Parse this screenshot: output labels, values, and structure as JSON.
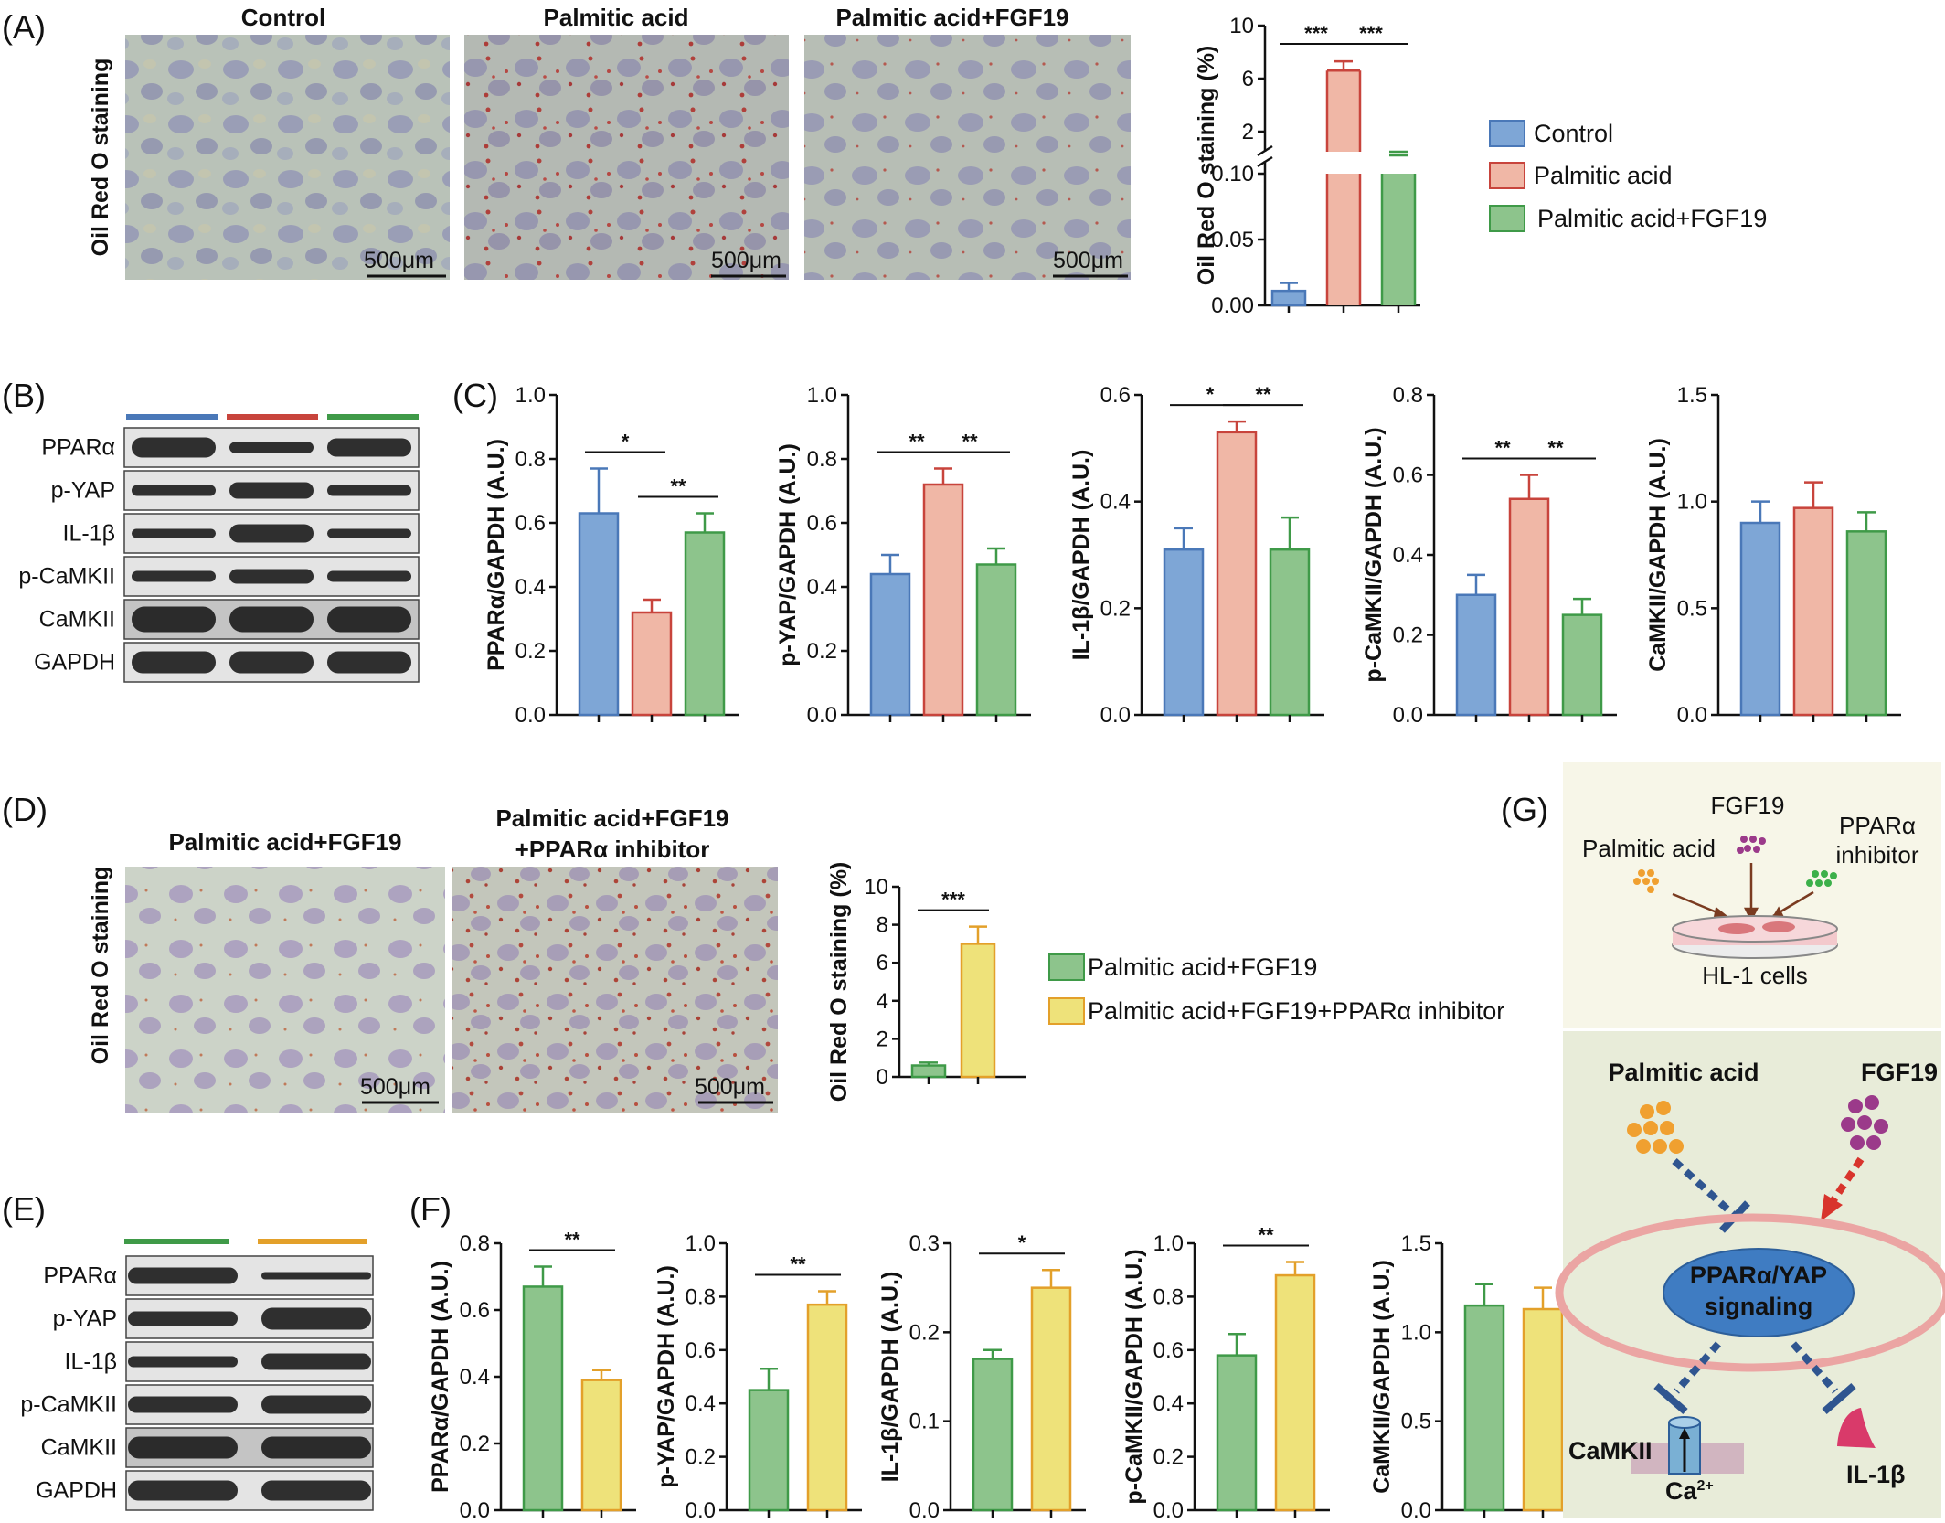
{
  "colors": {
    "control": "#7ea6d6",
    "control_edge": "#4a78b8",
    "pa": "#f0b7a6",
    "pa_edge": "#c8443c",
    "pafgf": "#8dc48c",
    "pafgf_edge": "#3f9a48",
    "inh": "#eee27a",
    "inh_edge": "#e3a02a"
  },
  "panels": {
    "A": "(A)",
    "B": "(B)",
    "C": "(C)",
    "D": "(D)",
    "E": "(E)",
    "F": "(F)",
    "G": "(G)"
  },
  "panel_a": {
    "titles": [
      "Control",
      "Palmitic acid",
      "Palmitic acid+FGF19"
    ],
    "ylabel": "Oil Red O staining",
    "scalebar": "500μm"
  },
  "panel_d": {
    "titles": [
      "Palmitic acid+FGF19",
      "Palmitic acid+FGF19",
      "+PPARα inhibitor"
    ],
    "ylabel": "Oil Red O staining",
    "scalebar": "500μm"
  },
  "legend_abc": [
    "Control",
    "Palmitic acid",
    "Palmitic acid+FGF19"
  ],
  "legend_def": [
    "Palmitic acid+FGF19",
    "Palmitic acid+FGF19+PPARα inhibitor"
  ],
  "blots_b": [
    "PPARα",
    "p-YAP",
    "IL-1β",
    "p-CaMKII",
    "CaMKII",
    "GAPDH"
  ],
  "blots_e": [
    "PPARα",
    "p-YAP",
    "IL-1β",
    "p-CaMKII",
    "CaMKII",
    "GAPDH"
  ],
  "chart_data": [
    {
      "id": "A",
      "type": "bar",
      "ylabel": "Oil Red O staining (%)",
      "broken_axis": true,
      "lower_ticks": [
        "0.00",
        "0.05",
        "0.10"
      ],
      "upper_ticks": [
        "2",
        "6",
        "10"
      ],
      "groups": [
        "Control",
        "Palmitic acid",
        "Palmitic acid+FGF19"
      ],
      "values": [
        0.011,
        6.6,
        0.13
      ],
      "errors": [
        0.006,
        0.7,
        0.02
      ],
      "sig": [
        {
          "from": 0,
          "to": 1,
          "label": "***"
        },
        {
          "from": 1,
          "to": 2,
          "label": "***"
        }
      ]
    },
    {
      "id": "C1",
      "type": "bar",
      "ylabel": "PPARα/GAPDH (A.U.)",
      "ylim": [
        0,
        1.0
      ],
      "ticks": [
        "0.0",
        "0.2",
        "0.4",
        "0.6",
        "0.8",
        "1.0"
      ],
      "groups": [
        "Control",
        "Palmitic acid",
        "Palmitic acid+FGF19"
      ],
      "values": [
        0.63,
        0.32,
        0.57
      ],
      "errors": [
        0.14,
        0.04,
        0.06
      ],
      "sig": [
        {
          "from": 0,
          "to": 1,
          "label": "*"
        },
        {
          "from": 1,
          "to": 2,
          "label": "**"
        }
      ]
    },
    {
      "id": "C2",
      "type": "bar",
      "ylabel": "p-YAP/GAPDH (A.U.)",
      "ylim": [
        0,
        1.0
      ],
      "ticks": [
        "0.0",
        "0.2",
        "0.4",
        "0.6",
        "0.8",
        "1.0"
      ],
      "groups": [
        "Control",
        "Palmitic acid",
        "Palmitic acid+FGF19"
      ],
      "values": [
        0.44,
        0.72,
        0.47
      ],
      "errors": [
        0.06,
        0.05,
        0.05
      ],
      "sig": [
        {
          "from": 0,
          "to": 1,
          "label": "**"
        },
        {
          "from": 1,
          "to": 2,
          "label": "**"
        }
      ]
    },
    {
      "id": "C3",
      "type": "bar",
      "ylabel": "IL-1β/GAPDH (A.U.)",
      "ylim": [
        0,
        0.6
      ],
      "ticks": [
        "0.0",
        "0.2",
        "0.4",
        "0.6"
      ],
      "groups": [
        "Control",
        "Palmitic acid",
        "Palmitic acid+FGF19"
      ],
      "values": [
        0.31,
        0.53,
        0.31
      ],
      "errors": [
        0.04,
        0.02,
        0.06
      ],
      "sig": [
        {
          "from": 0,
          "to": 1,
          "label": "*"
        },
        {
          "from": 1,
          "to": 2,
          "label": "**"
        }
      ]
    },
    {
      "id": "C4",
      "type": "bar",
      "ylabel": "p-CaMKII/GAPDH (A.U.)",
      "ylim": [
        0,
        0.8
      ],
      "ticks": [
        "0.0",
        "0.2",
        "0.4",
        "0.6",
        "0.8"
      ],
      "groups": [
        "Control",
        "Palmitic acid",
        "Palmitic acid+FGF19"
      ],
      "values": [
        0.3,
        0.54,
        0.25
      ],
      "errors": [
        0.05,
        0.06,
        0.04
      ],
      "sig": [
        {
          "from": 0,
          "to": 1,
          "label": "**"
        },
        {
          "from": 1,
          "to": 2,
          "label": "**"
        }
      ]
    },
    {
      "id": "C5",
      "type": "bar",
      "ylabel": "CaMKII/GAPDH (A.U.)",
      "ylim": [
        0,
        1.5
      ],
      "ticks": [
        "0.0",
        "0.5",
        "1.0",
        "1.5"
      ],
      "groups": [
        "Control",
        "Palmitic acid",
        "Palmitic acid+FGF19"
      ],
      "values": [
        0.9,
        0.97,
        0.86
      ],
      "errors": [
        0.1,
        0.12,
        0.09
      ],
      "sig": []
    },
    {
      "id": "D",
      "type": "bar",
      "ylabel": "Oil Red O staining (%)",
      "ylim": [
        0,
        10
      ],
      "ticks": [
        "0",
        "2",
        "4",
        "6",
        "8",
        "10"
      ],
      "groups": [
        "Palmitic acid+FGF19",
        "Palmitic acid+FGF19+PPARα inhibitor"
      ],
      "values": [
        0.6,
        7.0
      ],
      "errors": [
        0.15,
        0.9
      ],
      "sig": [
        {
          "from": 0,
          "to": 1,
          "label": "***"
        }
      ]
    },
    {
      "id": "F1",
      "type": "bar",
      "ylabel": "PPARα/GAPDH (A.U.)",
      "ylim": [
        0,
        0.8
      ],
      "ticks": [
        "0.0",
        "0.2",
        "0.4",
        "0.6",
        "0.8"
      ],
      "groups": [
        "Palmitic acid+FGF19",
        "Palmitic acid+FGF19+PPARα inhibitor"
      ],
      "values": [
        0.67,
        0.39
      ],
      "errors": [
        0.06,
        0.03
      ],
      "sig": [
        {
          "from": 0,
          "to": 1,
          "label": "**"
        }
      ]
    },
    {
      "id": "F2",
      "type": "bar",
      "ylabel": "p-YAP/GAPDH (A.U.)",
      "ylim": [
        0,
        1.0
      ],
      "ticks": [
        "0.0",
        "0.2",
        "0.4",
        "0.6",
        "0.8",
        "1.0"
      ],
      "groups": [
        "Palmitic acid+FGF19",
        "Palmitic acid+FGF19+PPARα inhibitor"
      ],
      "values": [
        0.45,
        0.77
      ],
      "errors": [
        0.08,
        0.05
      ],
      "sig": [
        {
          "from": 0,
          "to": 1,
          "label": "**"
        }
      ]
    },
    {
      "id": "F3",
      "type": "bar",
      "ylabel": "IL-1β/GAPDH (A.U.)",
      "ylim": [
        0,
        0.3
      ],
      "ticks": [
        "0.0",
        "0.1",
        "0.2",
        "0.3"
      ],
      "groups": [
        "Palmitic acid+FGF19",
        "Palmitic acid+FGF19+PPARα inhibitor"
      ],
      "values": [
        0.17,
        0.25
      ],
      "errors": [
        0.01,
        0.02
      ],
      "sig": [
        {
          "from": 0,
          "to": 1,
          "label": "*"
        }
      ]
    },
    {
      "id": "F4",
      "type": "bar",
      "ylabel": "p-CaMKII/GAPDH (A.U.)",
      "ylim": [
        0,
        1.0
      ],
      "ticks": [
        "0.0",
        "0.2",
        "0.4",
        "0.6",
        "0.8",
        "1.0"
      ],
      "groups": [
        "Palmitic acid+FGF19",
        "Palmitic acid+FGF19+PPARα inhibitor"
      ],
      "values": [
        0.58,
        0.88
      ],
      "errors": [
        0.08,
        0.05
      ],
      "sig": [
        {
          "from": 0,
          "to": 1,
          "label": "**"
        }
      ]
    },
    {
      "id": "F5",
      "type": "bar",
      "ylabel": "CaMKII/GAPDH (A.U.)",
      "ylim": [
        0,
        1.5
      ],
      "ticks": [
        "0.0",
        "0.5",
        "1.0",
        "1.5"
      ],
      "groups": [
        "Palmitic acid+FGF19",
        "Palmitic acid+FGF19+PPARα inhibitor"
      ],
      "values": [
        1.15,
        1.13
      ],
      "errors": [
        0.12,
        0.12
      ],
      "sig": []
    }
  ],
  "panel_g": {
    "top": {
      "fgf19": "FGF19",
      "palmitic": "Palmitic acid",
      "ppara": "PPARα",
      "inhibitor": "inhibitor",
      "cells": "HL-1 cells"
    },
    "bottom": {
      "palmitic": "Palmitic acid",
      "fgf19": "FGF19",
      "node_line1": "PPARα/YAP",
      "node_line2": "signaling",
      "camkii": "CaMKII",
      "ca": "Ca",
      "ca_sup": "2+",
      "il1b": "IL-1β"
    }
  }
}
